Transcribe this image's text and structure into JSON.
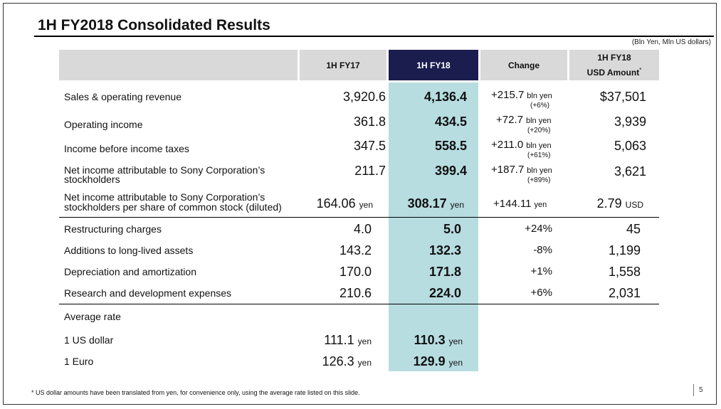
{
  "title": "1H FY2018 Consolidated Results",
  "units_note": "(Bln Yen, Mln US dollars)",
  "headers": {
    "col_fy17": "1H FY17",
    "col_fy18": "1H FY18",
    "col_change": "Change",
    "col_usd_line1": "1H FY18",
    "col_usd_line2": "USD Amount",
    "col_usd_mark": "*"
  },
  "rows": [
    {
      "label": "Sales & operating revenue",
      "fy17": "3,920.6",
      "fy18": "4,136.4",
      "change": "+215.7",
      "change_unit": "bln yen",
      "change_pct": "(+6%)",
      "usd": "$37,501"
    },
    {
      "label": "Operating income",
      "fy17": "361.8",
      "fy18": "434.5",
      "change": "+72.7",
      "change_unit": "bln yen",
      "change_pct": "(+20%)",
      "usd": "3,939"
    },
    {
      "label": "Income before income taxes",
      "fy17": "347.5",
      "fy18": "558.5",
      "change": "+211.0",
      "change_unit": "bln yen",
      "change_pct": "(+61%)",
      "usd": "5,063"
    },
    {
      "label_line1": "Net income attributable to Sony Corporation’s",
      "label_line2": "stockholders",
      "fy17": "211.7",
      "fy18": "399.4",
      "change": "+187.7",
      "change_unit": "bln yen",
      "change_pct": "(+89%)",
      "usd": "3,621"
    },
    {
      "label_line1": "Net income attributable to Sony Corporation’s",
      "label_line2": "stockholders per share of common stock (diluted)",
      "fy17": "164.06",
      "fy17_unit": "yen",
      "fy18": "308.17",
      "fy18_unit": "yen",
      "change": "+144.11",
      "change_unit": "yen",
      "usd": "2.79",
      "usd_unit": "USD"
    },
    {
      "label": "Restructuring charges",
      "fy17": "4.0",
      "fy18": "5.0",
      "change": "+24%",
      "usd": "45"
    },
    {
      "label": "Additions to long-lived assets",
      "fy17": "143.2",
      "fy18": "132.3",
      "change": "-8%",
      "usd": "1,199"
    },
    {
      "label": "Depreciation and amortization",
      "fy17": "170.0",
      "fy18": "171.8",
      "change": "+1%",
      "usd": "1,558"
    },
    {
      "label": "Research and development expenses",
      "fy17": "210.6",
      "fy18": "224.0",
      "change": "+6%",
      "usd": "2,031"
    }
  ],
  "rates": {
    "heading": "Average rate",
    "items": [
      {
        "label": "1 US dollar",
        "fy17": "111.1",
        "fy17_unit": "yen",
        "fy18": "110.3",
        "fy18_unit": "yen"
      },
      {
        "label": "1 Euro",
        "fy17": "126.3",
        "fy17_unit": "yen",
        "fy18": "129.9",
        "fy18_unit": "yen"
      }
    ]
  },
  "footnote": "* US dollar amounts have been translated from yen, for convenience only, using the average rate listed on this slide.",
  "page_number": "5",
  "colors": {
    "header_gray": "#d9d9d9",
    "header_navy": "#1a1d4e",
    "highlight_col": "#b7dde1"
  }
}
